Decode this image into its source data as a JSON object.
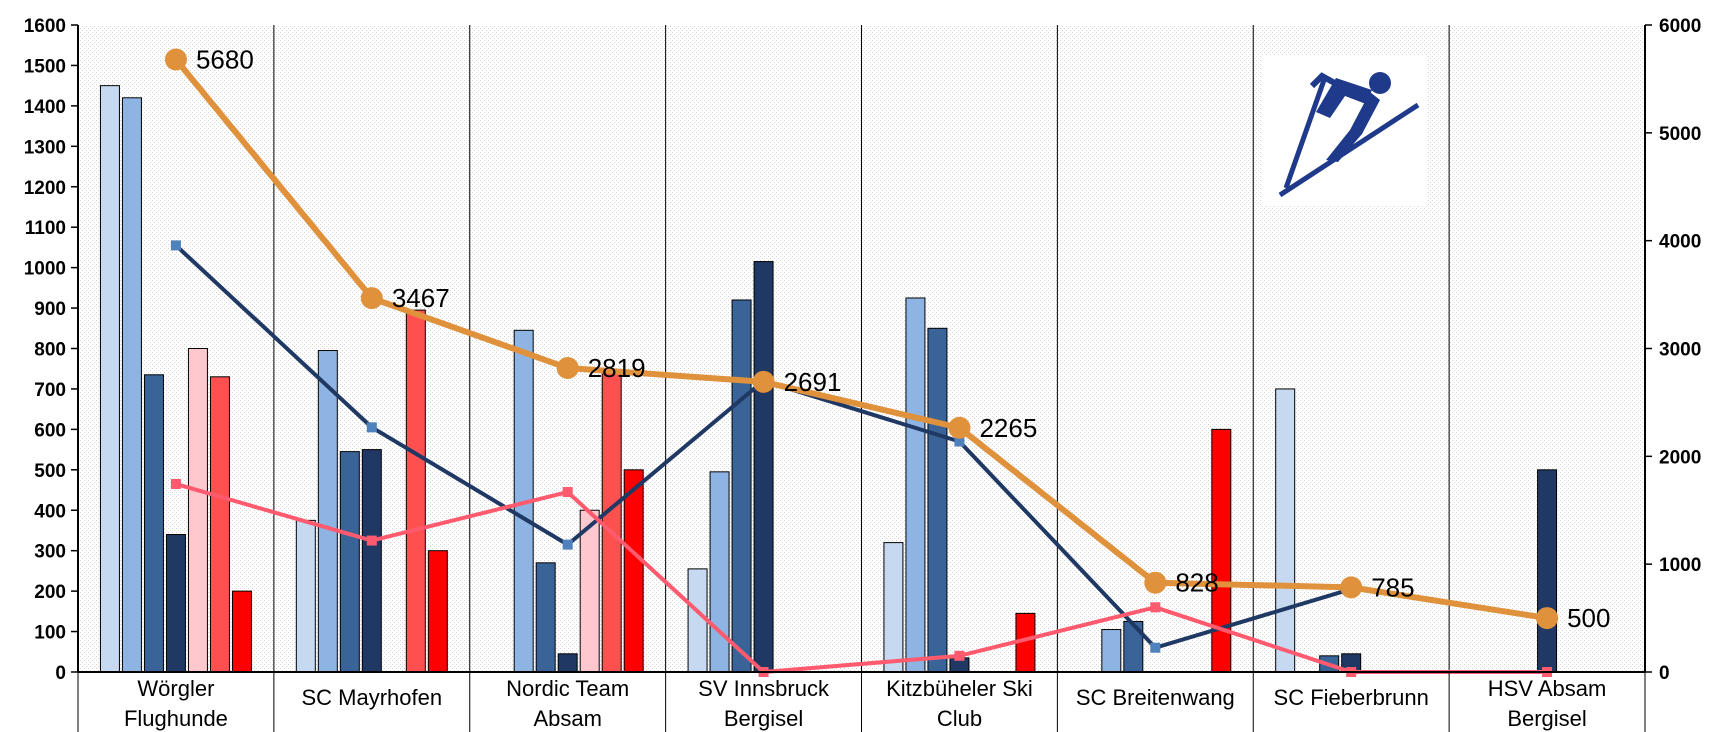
{
  "chart_data": {
    "type": "bar",
    "categories": [
      [
        "Wörgler",
        "Flughunde"
      ],
      [
        "SC Mayrhofen"
      ],
      [
        "Nordic Team",
        "Absam"
      ],
      [
        "SV Innsbruck",
        "Bergisel"
      ],
      [
        "Kitzbüheler Ski",
        "Club"
      ],
      [
        "SC Breitenwang"
      ],
      [
        "SC Fieberbrunn"
      ],
      [
        "HSV Absam",
        "Bergisel"
      ]
    ],
    "ylim": [
      0,
      1600
    ],
    "yticks": [
      0,
      100,
      200,
      300,
      400,
      500,
      600,
      700,
      800,
      900,
      1000,
      1100,
      1200,
      1300,
      1400,
      1500,
      1600
    ],
    "y2lim": [
      0,
      6000
    ],
    "y2ticks": [
      0,
      1000,
      2000,
      3000,
      4000,
      5000,
      6000
    ],
    "grid": "vertical",
    "colors": {
      "bars": [
        "#c6d9f1",
        "#8eb4e3",
        "#3a6498",
        "#1f3864",
        "#ffc7ce",
        "#ff5050",
        "#ff0000"
      ],
      "line_blue": "#1f3864",
      "line_blue_marker": "#4f81bd",
      "line_red": "#ff5a6e",
      "line_orange": "#e0913b"
    },
    "bar_series": [
      {
        "values": [
          1450,
          375,
          0,
          255,
          320,
          0,
          700,
          0
        ]
      },
      {
        "values": [
          1420,
          795,
          845,
          495,
          925,
          105,
          0,
          0
        ]
      },
      {
        "values": [
          735,
          545,
          270,
          920,
          850,
          125,
          40,
          0
        ]
      },
      {
        "values": [
          340,
          550,
          45,
          1015,
          35,
          0,
          45,
          500
        ]
      },
      {
        "values": [
          800,
          0,
          400,
          0,
          0,
          0,
          0,
          0
        ]
      },
      {
        "values": [
          730,
          895,
          740,
          0,
          0,
          0,
          0,
          0
        ]
      },
      {
        "values": [
          200,
          300,
          500,
          0,
          145,
          600,
          0,
          0
        ]
      }
    ],
    "line_series": [
      {
        "axis": "left",
        "style": "blue",
        "values": [
          1055,
          605,
          315,
          720,
          570,
          60,
          205,
          null
        ]
      },
      {
        "axis": "left",
        "style": "red",
        "values": [
          465,
          325,
          445,
          0,
          40,
          160,
          0,
          0
        ]
      },
      {
        "axis": "right",
        "style": "orange",
        "values": [
          5680,
          3467,
          2819,
          2691,
          2265,
          828,
          785,
          500
        ],
        "labels": [
          "5680",
          "3467",
          "2819",
          "2691",
          "2265",
          "828",
          "785",
          "500"
        ]
      }
    ]
  }
}
